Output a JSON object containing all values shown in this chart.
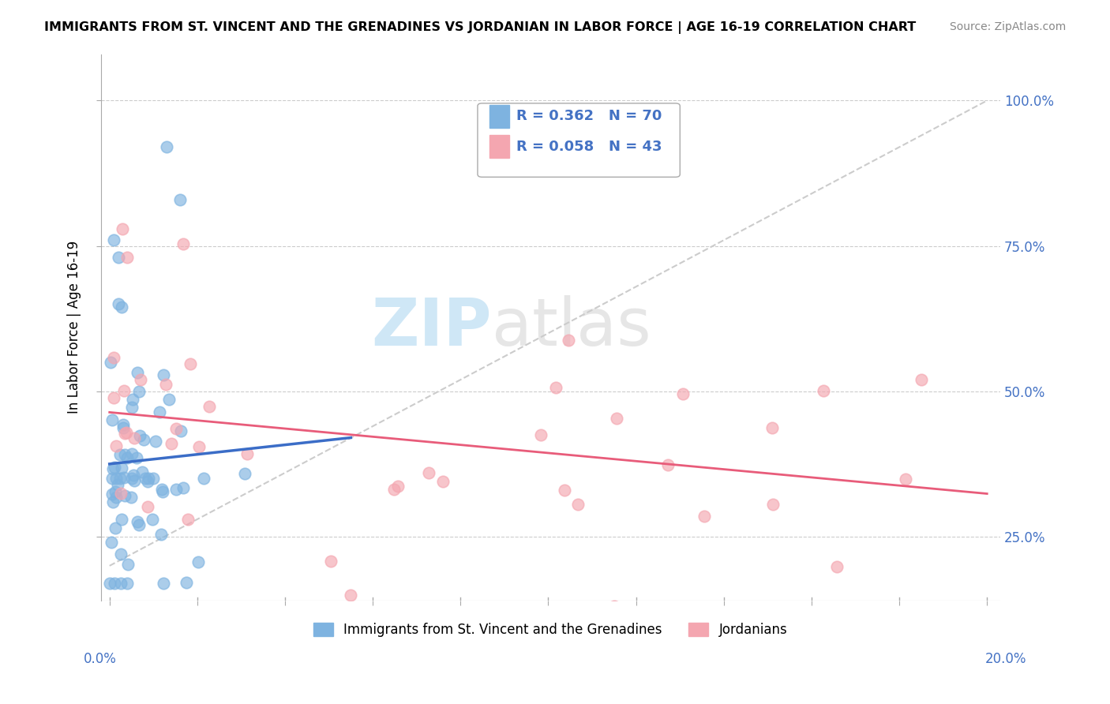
{
  "title": "IMMIGRANTS FROM ST. VINCENT AND THE GRENADINES VS JORDANIAN IN LABOR FORCE | AGE 16-19 CORRELATION CHART",
  "source": "Source: ZipAtlas.com",
  "ylabel": "In Labor Force | Age 16-19",
  "blue_R": 0.362,
  "blue_N": 70,
  "pink_R": 0.058,
  "pink_N": 43,
  "blue_color": "#7EB3E0",
  "blue_line_color": "#3B6DC7",
  "pink_color": "#F4A6B0",
  "pink_line_color": "#E85C7A",
  "blue_label": "Immigrants from St. Vincent and the Grenadines",
  "pink_label": "Jordanians",
  "watermark_zip": "ZIP",
  "watermark_atlas": "atlas",
  "xlim": [
    0.0,
    0.2
  ],
  "ylim": [
    0.14,
    1.08
  ],
  "yticks": [
    0.25,
    0.5,
    0.75,
    1.0
  ],
  "ytick_labels": [
    "25.0%",
    "50.0%",
    "75.0%",
    "100.0%"
  ],
  "tick_color": "#4472c4",
  "grid_color": "#cccccc",
  "ref_line_color": "#cccccc",
  "spine_color": "#aaaaaa"
}
